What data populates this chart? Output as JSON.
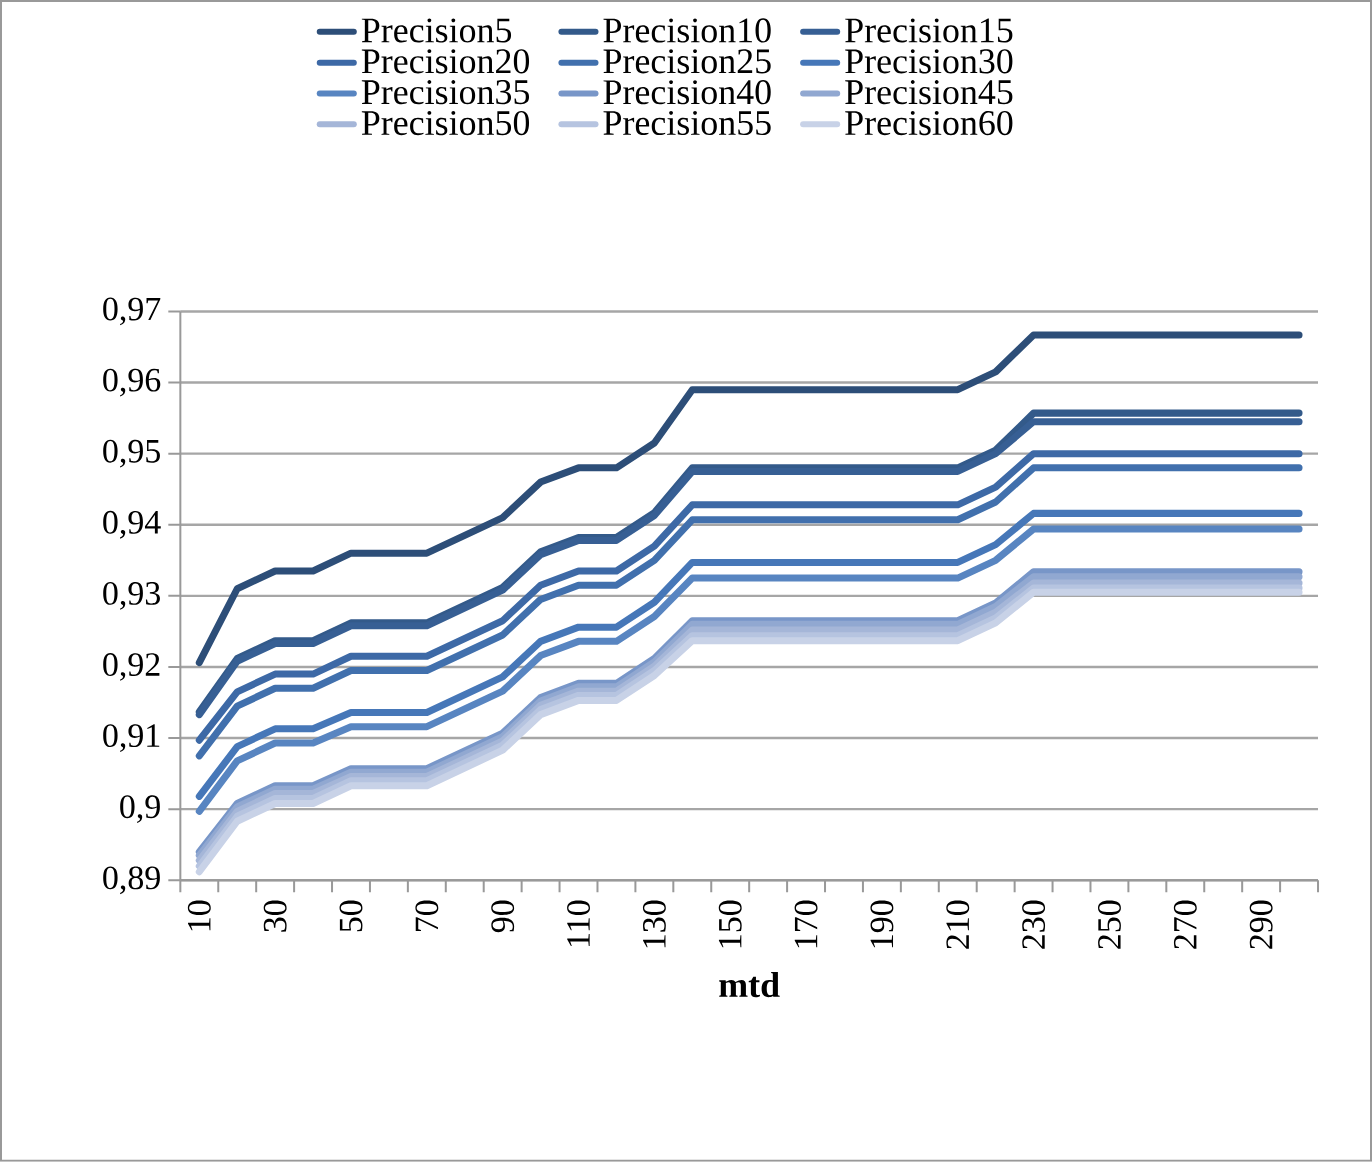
{
  "chart_data": {
    "type": "line",
    "xlabel": "mtd",
    "categories": [
      "10",
      null,
      "30",
      null,
      "50",
      null,
      "70",
      null,
      "90",
      null,
      "110",
      null,
      "130",
      null,
      "150",
      null,
      "170",
      null,
      "190",
      null,
      "210",
      null,
      "230",
      null,
      "250",
      null,
      "270",
      null,
      "290",
      null
    ],
    "ylim": [
      0.89,
      0.97
    ],
    "yticks": [
      {
        "value": 0.89,
        "label": "0,89"
      },
      {
        "value": 0.9,
        "label": "0,9"
      },
      {
        "value": 0.91,
        "label": "0,91"
      },
      {
        "value": 0.92,
        "label": "0,92"
      },
      {
        "value": 0.93,
        "label": "0,93"
      },
      {
        "value": 0.94,
        "label": "0,94"
      },
      {
        "value": 0.95,
        "label": "0,95"
      },
      {
        "value": 0.96,
        "label": "0,96"
      },
      {
        "value": 0.97,
        "label": "0,97"
      }
    ],
    "grid": "y",
    "legend": "top",
    "marker": "none",
    "line_style": "solid",
    "series": [
      {
        "name": "Precision5",
        "color": "#2d4e78",
        "values": [
          0.9206,
          0.931,
          0.9335,
          0.9335,
          0.936,
          0.936,
          0.936,
          0.9385,
          0.941,
          0.946,
          0.948,
          0.948,
          0.9515,
          0.959,
          0.959,
          0.959,
          0.959,
          0.959,
          0.959,
          0.959,
          0.959,
          0.9615,
          0.9667,
          0.9667,
          0.9667,
          0.9667,
          0.9667,
          0.9667,
          0.9667,
          0.9667
        ]
      },
      {
        "name": "Precision10",
        "color": "#335a8a",
        "values": [
          0.9137,
          0.9212,
          0.9237,
          0.9237,
          0.9262,
          0.9262,
          0.9262,
          0.9287,
          0.9312,
          0.9362,
          0.9382,
          0.9382,
          0.9417,
          0.948,
          0.948,
          0.948,
          0.948,
          0.948,
          0.948,
          0.948,
          0.948,
          0.9505,
          0.9557,
          0.9557,
          0.9557,
          0.9557,
          0.9557,
          0.9557,
          0.9557,
          0.9557
        ]
      },
      {
        "name": "Precision15",
        "color": "#375f94",
        "values": [
          0.9133,
          0.9208,
          0.9233,
          0.9233,
          0.9258,
          0.9258,
          0.9258,
          0.9283,
          0.9308,
          0.9358,
          0.9378,
          0.9378,
          0.9413,
          0.9475,
          0.9475,
          0.9475,
          0.9475,
          0.9475,
          0.9475,
          0.9475,
          0.9475,
          0.95,
          0.9545,
          0.9545,
          0.9545,
          0.9545,
          0.9545,
          0.9545,
          0.9545,
          0.9545
        ]
      },
      {
        "name": "Precision20",
        "color": "#3d69a6",
        "values": [
          0.9097,
          0.9165,
          0.919,
          0.919,
          0.9215,
          0.9215,
          0.9215,
          0.924,
          0.9265,
          0.9315,
          0.9335,
          0.9335,
          0.937,
          0.9428,
          0.9428,
          0.9428,
          0.9428,
          0.9428,
          0.9428,
          0.9428,
          0.9428,
          0.9453,
          0.95,
          0.95,
          0.95,
          0.95,
          0.95,
          0.95,
          0.95,
          0.95
        ]
      },
      {
        "name": "Precision25",
        "color": "#4170ad",
        "values": [
          0.9075,
          0.9145,
          0.917,
          0.917,
          0.9195,
          0.9195,
          0.9195,
          0.922,
          0.9245,
          0.9295,
          0.9315,
          0.9315,
          0.935,
          0.9407,
          0.9407,
          0.9407,
          0.9407,
          0.9407,
          0.9407,
          0.9407,
          0.9407,
          0.9432,
          0.948,
          0.948,
          0.948,
          0.948,
          0.948,
          0.948,
          0.948,
          0.948
        ]
      },
      {
        "name": "Precision30",
        "color": "#4677b8",
        "values": [
          0.9018,
          0.9088,
          0.9113,
          0.9113,
          0.9136,
          0.9136,
          0.9136,
          0.9161,
          0.9186,
          0.9236,
          0.9256,
          0.9256,
          0.9291,
          0.9347,
          0.9347,
          0.9347,
          0.9347,
          0.9347,
          0.9347,
          0.9347,
          0.9347,
          0.9372,
          0.9416,
          0.9416,
          0.9416,
          0.9416,
          0.9416,
          0.9416,
          0.9416,
          0.9416
        ]
      },
      {
        "name": "Precision35",
        "color": "#5885c1",
        "values": [
          0.8997,
          0.9068,
          0.9093,
          0.9093,
          0.9116,
          0.9116,
          0.9116,
          0.9141,
          0.9166,
          0.9216,
          0.9236,
          0.9236,
          0.9271,
          0.9325,
          0.9325,
          0.9325,
          0.9325,
          0.9325,
          0.9325,
          0.9325,
          0.9325,
          0.935,
          0.9394,
          0.9394,
          0.9394,
          0.9394,
          0.9394,
          0.9394,
          0.9394,
          0.9394
        ]
      },
      {
        "name": "Precision40",
        "color": "#7896c8",
        "values": [
          0.894,
          0.9008,
          0.9033,
          0.9033,
          0.9057,
          0.9057,
          0.9057,
          0.9082,
          0.9107,
          0.9157,
          0.9177,
          0.9177,
          0.9212,
          0.9265,
          0.9265,
          0.9265,
          0.9265,
          0.9265,
          0.9265,
          0.9265,
          0.9265,
          0.929,
          0.9334,
          0.9334,
          0.9334,
          0.9334,
          0.9334,
          0.9334,
          0.9334,
          0.9334
        ]
      },
      {
        "name": "Precision45",
        "color": "#91a8d1",
        "values": [
          0.8935,
          0.9003,
          0.9028,
          0.9028,
          0.9052,
          0.9052,
          0.9052,
          0.9077,
          0.9102,
          0.9152,
          0.9172,
          0.9172,
          0.9207,
          0.926,
          0.926,
          0.926,
          0.926,
          0.926,
          0.926,
          0.926,
          0.926,
          0.9285,
          0.9327,
          0.9327,
          0.9327,
          0.9327,
          0.9327,
          0.9327,
          0.9327,
          0.9327
        ]
      },
      {
        "name": "Precision50",
        "color": "#a5b6d8",
        "values": [
          0.8928,
          0.8997,
          0.9022,
          0.9022,
          0.9046,
          0.9046,
          0.9046,
          0.9071,
          0.9096,
          0.9146,
          0.9166,
          0.9166,
          0.9201,
          0.9252,
          0.9252,
          0.9252,
          0.9252,
          0.9252,
          0.9252,
          0.9252,
          0.9252,
          0.9277,
          0.9318,
          0.9318,
          0.9318,
          0.9318,
          0.9318,
          0.9318,
          0.9318,
          0.9318
        ]
      },
      {
        "name": "Precision55",
        "color": "#b6c4e0",
        "values": [
          0.892,
          0.899,
          0.9015,
          0.9015,
          0.904,
          0.904,
          0.904,
          0.9065,
          0.909,
          0.914,
          0.916,
          0.916,
          0.9195,
          0.9244,
          0.9244,
          0.9244,
          0.9244,
          0.9244,
          0.9244,
          0.9244,
          0.9244,
          0.9269,
          0.9311,
          0.9311,
          0.9311,
          0.9311,
          0.9311,
          0.9311,
          0.9311,
          0.9311
        ]
      },
      {
        "name": "Precision60",
        "color": "#c8d2e7",
        "values": [
          0.8912,
          0.8983,
          0.9008,
          0.9008,
          0.9033,
          0.9033,
          0.9033,
          0.9058,
          0.9083,
          0.9133,
          0.9153,
          0.9153,
          0.9188,
          0.9237,
          0.9237,
          0.9237,
          0.9237,
          0.9237,
          0.9237,
          0.9237,
          0.9237,
          0.9262,
          0.9305,
          0.9305,
          0.9305,
          0.9305,
          0.9305,
          0.9305,
          0.9305,
          0.9305
        ]
      }
    ]
  }
}
